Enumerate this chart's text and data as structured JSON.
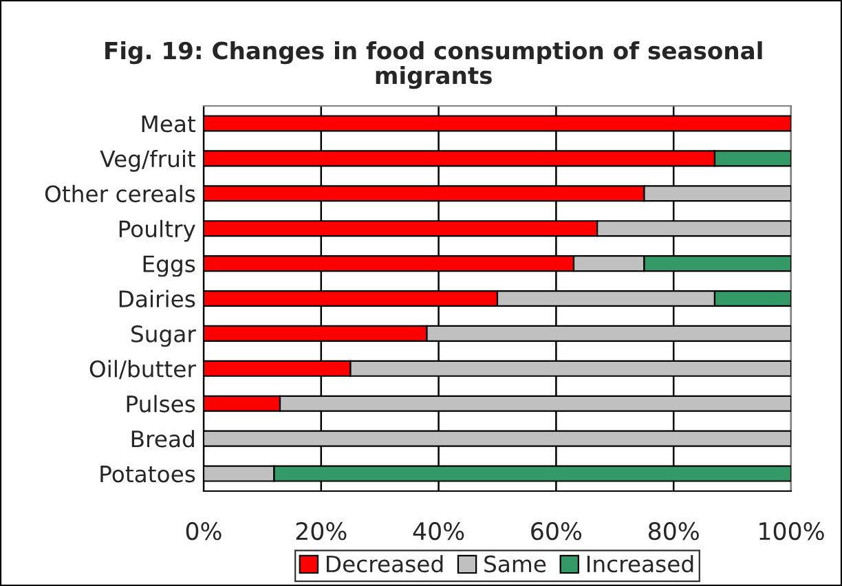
{
  "chart_data": {
    "type": "bar",
    "orientation": "horizontal",
    "stacked": true,
    "title": "Fig. 19: Changes in food consumption of seasonal migrants",
    "categories": [
      "Meat",
      "Veg/fruit",
      "Other cereals",
      "Poultry",
      "Eggs",
      "Dairies",
      "Sugar",
      "Oil/butter",
      "Pulses",
      "Bread",
      "Potatoes"
    ],
    "series": [
      {
        "name": "Decreased",
        "color": "#ff0000",
        "values": [
          100,
          87,
          75,
          67,
          63,
          50,
          38,
          25,
          13,
          0,
          0
        ]
      },
      {
        "name": "Same",
        "color": "#c0c0c0",
        "values": [
          0,
          0,
          25,
          33,
          12,
          37,
          62,
          75,
          87,
          100,
          12
        ]
      },
      {
        "name": "Increased",
        "color": "#339966",
        "values": [
          0,
          13,
          0,
          0,
          25,
          13,
          0,
          0,
          0,
          0,
          88
        ]
      }
    ],
    "xlim": [
      0,
      100
    ],
    "xticks": [
      {
        "value": 0,
        "label": "0%"
      },
      {
        "value": 20,
        "label": "20%"
      },
      {
        "value": 40,
        "label": "40%"
      },
      {
        "value": 60,
        "label": "60%"
      },
      {
        "value": 80,
        "label": "80%"
      },
      {
        "value": 100,
        "label": "100%"
      }
    ],
    "grid": "x",
    "legend": "bottom"
  }
}
